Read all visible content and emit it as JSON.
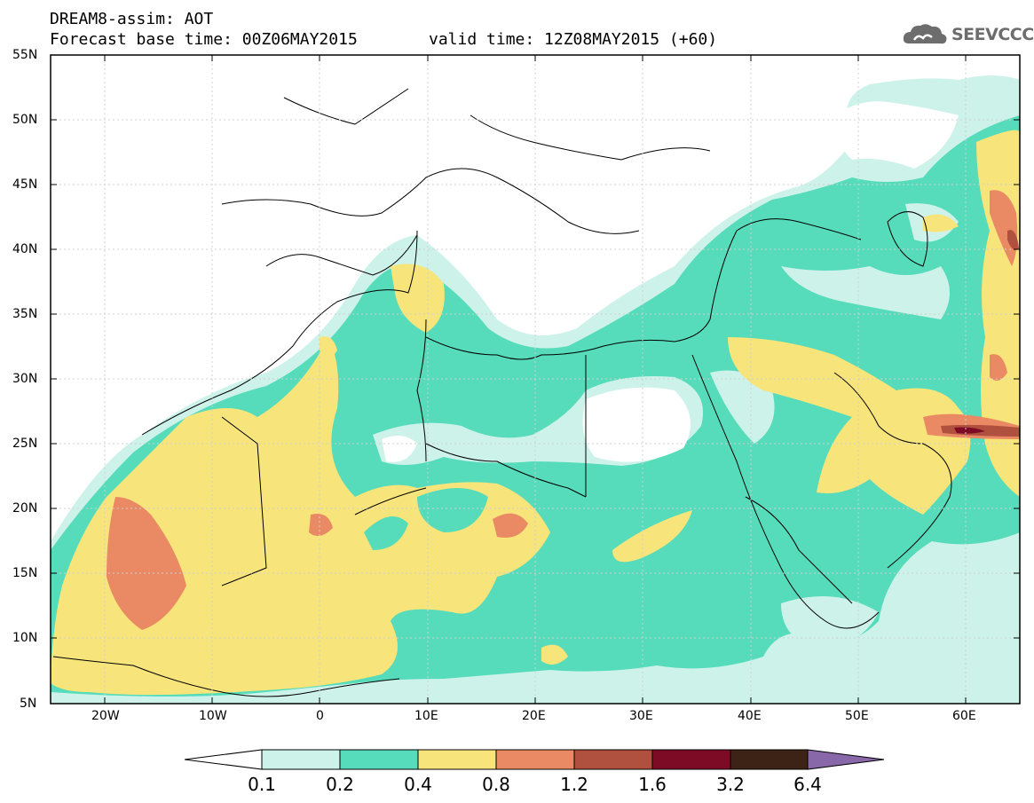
{
  "header": {
    "line1": "DREAM8-assim: AOT",
    "line2_base": "Forecast base time: 00Z06MAY2015",
    "line2_valid": "valid time: 12Z08MAY2015 (+60)",
    "logo_text": "SEEVCCC",
    "logo_icon": "cloud-icon"
  },
  "map": {
    "variable": "AOT",
    "lon_range": [
      -25,
      65
    ],
    "lat_range": [
      5,
      55
    ],
    "lat_labels": [
      "55N",
      "50N",
      "45N",
      "40N",
      "35N",
      "30N",
      "25N",
      "20N",
      "15N",
      "10N",
      "5N"
    ],
    "lon_labels": [
      "20W",
      "10W",
      "0",
      "10E",
      "20E",
      "30E",
      "40E",
      "50E",
      "60E"
    ]
  },
  "colorbar": {
    "levels": [
      "0.1",
      "0.2",
      "0.4",
      "0.8",
      "1.2",
      "1.6",
      "3.2",
      "6.4"
    ],
    "colors": [
      "#cdf2ea",
      "#56dcbb",
      "#f7e47a",
      "#ea8a64",
      "#b0503e",
      "#7e0b26",
      "#3c2315",
      "#8868a8"
    ]
  }
}
